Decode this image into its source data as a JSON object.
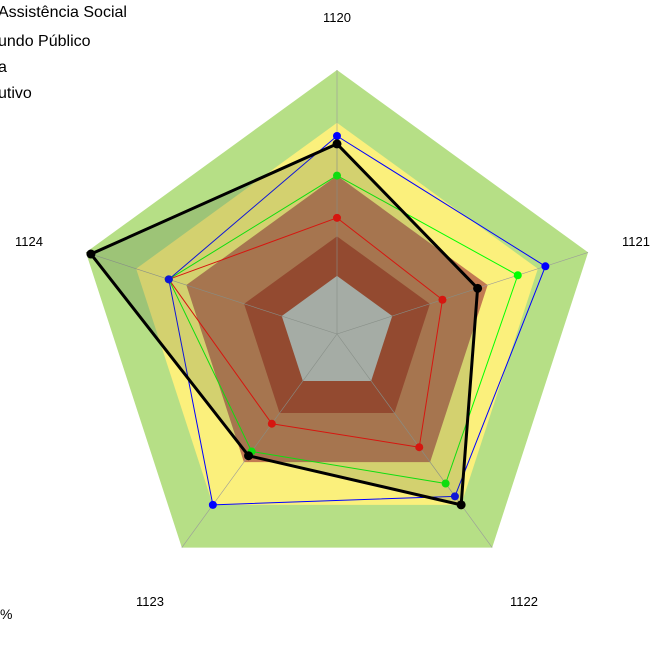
{
  "legend_text": [
    "Assistência Social",
    "undo Público",
    "a",
    "utivo"
  ],
  "footer_text": "%",
  "chart_data": {
    "type": "radar",
    "axes": [
      "1120",
      "1121",
      "1122",
      "1123",
      "1124"
    ],
    "rlim": [
      0,
      100
    ],
    "background_bands": [
      {
        "from": 0,
        "to": 22,
        "color": "#c0c0c0"
      },
      {
        "from": 22,
        "to": 37,
        "color": "#a9432b"
      },
      {
        "from": 37,
        "to": 60,
        "color": "#c27a52"
      },
      {
        "from": 60,
        "to": 80,
        "color": "#fbf07c"
      },
      {
        "from": 80,
        "to": 100,
        "color": "#b6df86"
      }
    ],
    "series": [
      {
        "color": "#ff0000",
        "line_width": 1,
        "values": [
          44,
          42,
          53,
          42,
          67
        ]
      },
      {
        "color": "#00ff00",
        "line_width": 1,
        "values": [
          60,
          72,
          70,
          55,
          67
        ]
      },
      {
        "color": "#0000ff",
        "line_width": 1,
        "values": [
          75,
          83,
          76,
          80,
          67
        ]
      },
      {
        "color": "#000000",
        "line_width": 3,
        "values": [
          72,
          56,
          80,
          57,
          98
        ]
      }
    ]
  }
}
